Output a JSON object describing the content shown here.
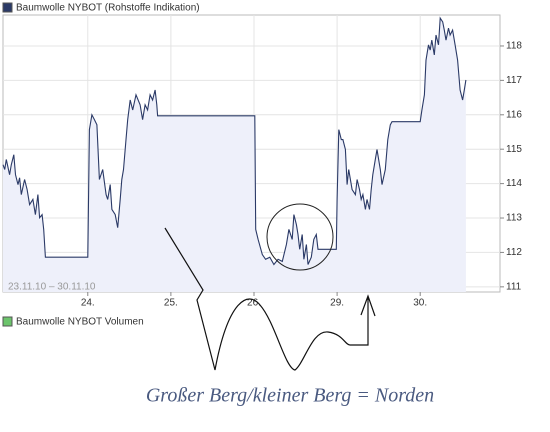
{
  "chart_data": {
    "type": "line",
    "title": "Baumwolle NYBOT (Rohstoffe Indikation)",
    "subtitle": "Baumwolle NYBOT Volumen",
    "date_range": "23.11.10 – 30.11.10",
    "annotation": "Großer Berg/kleiner Berg = Norden",
    "x": [
      -1.02,
      -1.0,
      -0.98,
      -0.94,
      -0.92,
      -0.89,
      -0.87,
      -0.84,
      -0.82,
      -0.8,
      -0.76,
      -0.73,
      -0.7,
      -0.66,
      -0.63,
      -0.6,
      -0.58,
      -0.55,
      -0.53,
      -0.51,
      0,
      0.02,
      0.05,
      0.08,
      0.11,
      0.14,
      0.18,
      0.22,
      0.24,
      0.27,
      0.29,
      0.33,
      0.36,
      0.39,
      0.41,
      0.43,
      0.46,
      0.48,
      0.51,
      0.54,
      0.58,
      0.63,
      0.66,
      0.69,
      0.72,
      0.75,
      0.78,
      0.81,
      0.83,
      0.84,
      2.01,
      2.02,
      2.05,
      2.1,
      2.14,
      2.19,
      2.24,
      2.29,
      2.34,
      2.39,
      2.42,
      2.46,
      2.48,
      2.51,
      2.53,
      2.55,
      2.58,
      2.6,
      2.63,
      2.65,
      2.69,
      2.72,
      2.75,
      2.77,
      2.8,
      2.99,
      3.0,
      3.02,
      3.05,
      3.07,
      3.1,
      3.12,
      3.14,
      3.18,
      3.22,
      3.24,
      3.27,
      3.29,
      3.31,
      3.34,
      3.36,
      3.39,
      3.41,
      3.43,
      3.46,
      3.48,
      3.52,
      3.54,
      3.58,
      3.61,
      3.64,
      3.66,
      4.0,
      4.02,
      4.05,
      4.07,
      4.1,
      4.12,
      4.14,
      4.17,
      4.19,
      4.22,
      4.24,
      4.27,
      4.29,
      4.31,
      4.34,
      4.36,
      4.39,
      4.42,
      4.45,
      4.48,
      4.51,
      4.53,
      4.55
    ],
    "series": [
      {
        "name": "Baumwolle NYBOT",
        "color": "#2b3a67",
        "values": [
          114.55,
          114.41,
          114.7,
          114.26,
          114.55,
          114.84,
          114.26,
          113.97,
          114.17,
          113.68,
          114.12,
          113.83,
          113.39,
          113.54,
          113.1,
          113.68,
          113.01,
          113.1,
          112.67,
          111.86,
          111.86,
          115.57,
          116.0,
          115.86,
          115.71,
          114.12,
          114.41,
          113.68,
          113.54,
          113.97,
          113.25,
          113.1,
          112.72,
          113.54,
          114.12,
          114.41,
          115.28,
          115.86,
          116.43,
          116.14,
          116.58,
          116.29,
          115.86,
          116.29,
          116.14,
          116.58,
          116.43,
          116.72,
          116.29,
          115.97,
          115.97,
          112.67,
          112.38,
          111.94,
          111.8,
          111.86,
          111.65,
          111.8,
          111.74,
          112.23,
          112.67,
          112.38,
          113.1,
          112.81,
          112.52,
          112.09,
          112.52,
          111.8,
          112.23,
          111.65,
          111.86,
          112.38,
          112.52,
          112.09,
          112.09,
          112.09,
          113.54,
          115.57,
          115.28,
          115.28,
          114.99,
          113.97,
          114.41,
          113.83,
          113.68,
          114.12,
          113.83,
          113.54,
          113.68,
          113.25,
          113.54,
          113.25,
          113.83,
          114.26,
          114.7,
          114.99,
          114.41,
          113.97,
          114.41,
          115.28,
          115.71,
          115.8,
          115.8,
          116.14,
          116.58,
          117.59,
          118.03,
          117.88,
          118.17,
          117.74,
          118.32,
          118.03,
          118.81,
          118.7,
          118.46,
          118.17,
          118.52,
          118.32,
          118.46,
          118.03,
          117.59,
          116.72,
          116.43,
          116.72,
          117.01
        ]
      }
    ],
    "xlim": [
      -1.02,
      4.96
    ],
    "xticks": [
      {
        "value": 0,
        "label": "24."
      },
      {
        "value": 1,
        "label": "25."
      },
      {
        "value": 2,
        "label": "26."
      },
      {
        "value": 3,
        "label": "29."
      },
      {
        "value": 4,
        "label": "30."
      }
    ],
    "ylim": [
      110.85,
      118.9
    ],
    "yticks": [
      111,
      112,
      113,
      114,
      115,
      116,
      117,
      118
    ],
    "grid": true,
    "fill": "#eef0fa",
    "volume_color": "#6cc46c"
  }
}
